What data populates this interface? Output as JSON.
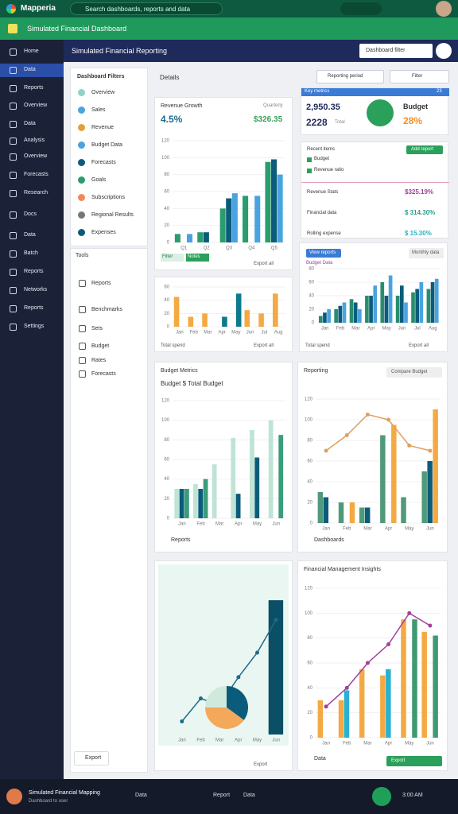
{
  "app": {
    "name": "Mapperia",
    "search": "Search dashboards, reports and data",
    "tab": "Simulated Financial Dashboard"
  },
  "header": {
    "title": "Simulated Financial Reporting",
    "filter": "Dashboard filter"
  },
  "sidebar": [
    "Home",
    "Data",
    "Reports",
    "Overview",
    "Data",
    "Analysis",
    "Overview",
    "Forecasts",
    "Research",
    "Docs",
    "Data",
    "Batch",
    "Reports",
    "Networks",
    "Reports",
    "Settings"
  ],
  "filters": {
    "title": "Dashboard Filters",
    "items": [
      "Overview",
      "Sales",
      "Revenue",
      "Budget Data",
      "Forecasts",
      "Goals",
      "Subscriptions",
      "Regional Results",
      "Expenses"
    ]
  },
  "tools": {
    "title": "Tools",
    "items": [
      "Reports",
      "Benchmarks",
      "Sets",
      "Budget",
      "Rates",
      "Forecasts"
    ],
    "footer": "Export"
  },
  "content": {
    "label": "Details",
    "period": "Reporting period",
    "filter": "Filter"
  },
  "kpi": {
    "title": "Key metrics",
    "count": "23",
    "value": "2,950.35",
    "sub": "2228",
    "subnote": "Total",
    "label": "Budget",
    "percent": "28%"
  },
  "list": {
    "title": "Recent items",
    "button": "Add report",
    "items": [
      "Budget",
      "Revenue ratio"
    ],
    "rows": [
      {
        "label": "Revenue Stats",
        "value": "$325.19%"
      },
      {
        "label": "Financial data",
        "value": "$ 314.30%"
      },
      {
        "label": "Rolling expense",
        "value": "$ 15.30%"
      }
    ]
  },
  "charts": [
    {
      "type": "bar",
      "title": "Revenue Growth",
      "tag": "Quarterly",
      "headline": "4.5%",
      "headline2": "$326.35",
      "badges": [
        "Filter",
        "Notes"
      ],
      "action": "Export all",
      "ylim": [
        0,
        120
      ],
      "yticks": [
        0,
        20,
        40,
        60,
        80,
        100,
        120
      ],
      "categories": [
        "Q1",
        "Q2",
        "Q3",
        "Q4",
        "Q5"
      ],
      "series": [
        {
          "color": "#2a9d6e",
          "values": [
            10,
            12,
            40,
            55,
            95
          ]
        },
        {
          "color": "#0b5c7a",
          "values": [
            null,
            12,
            52,
            null,
            98
          ]
        },
        {
          "color": "#4aa3df",
          "values": [
            10,
            null,
            58,
            55,
            80
          ]
        }
      ]
    },
    {
      "type": "bar",
      "label": "Total spend",
      "action": "Export all",
      "ylim": [
        0,
        60
      ],
      "yticks": [
        0,
        20,
        40,
        60
      ],
      "categories": [
        "Jan",
        "Feb",
        "Mar",
        "Apr",
        "May",
        "Jun",
        "Jul",
        "Aug"
      ],
      "series": [
        {
          "color": "#f4a942",
          "values": [
            45,
            15,
            20,
            null,
            null,
            25,
            20,
            50
          ]
        },
        {
          "color": "#0b7a8c",
          "values": [
            null,
            null,
            null,
            15,
            50,
            null,
            null,
            null
          ]
        }
      ]
    },
    {
      "type": "bar",
      "button": "View reports",
      "button2": "Monthly data",
      "subtitle": "Budget Data",
      "label": "Total spend",
      "action": "Export all",
      "ylim": [
        0,
        80
      ],
      "yticks": [
        0,
        20,
        40,
        60,
        80
      ],
      "categories": [
        "Jan",
        "Feb",
        "Mar",
        "Apr",
        "May",
        "Jun",
        "Jul",
        "Aug"
      ],
      "series": [
        {
          "color": "#2a8c6e",
          "values": [
            10,
            20,
            35,
            40,
            60,
            40,
            45,
            50
          ]
        },
        {
          "color": "#0b5c7a",
          "values": [
            15,
            25,
            30,
            40,
            40,
            55,
            50,
            60
          ]
        },
        {
          "color": "#4aa3df",
          "values": [
            20,
            30,
            20,
            55,
            70,
            30,
            60,
            65
          ]
        }
      ]
    },
    {
      "type": "bar",
      "title": "Budget Metrics",
      "subtitle": "Budget $ Total Budget",
      "footer": "Reports",
      "ylim": [
        0,
        120
      ],
      "yticks": [
        0,
        20,
        40,
        60,
        80,
        100,
        120
      ],
      "categories": [
        "Jan",
        "Feb",
        "Mar",
        "Apr",
        "May",
        "Jun"
      ],
      "series": [
        {
          "color": "#bfe3d4",
          "values": [
            30,
            35,
            55,
            82,
            90,
            100
          ]
        },
        {
          "color": "#0b5c7a",
          "values": [
            30,
            30,
            null,
            25,
            62,
            null
          ]
        },
        {
          "color": "#3a9d7a",
          "values": [
            30,
            40,
            null,
            null,
            null,
            85
          ]
        }
      ]
    },
    {
      "type": "bar",
      "title": "Reporting",
      "button": "Compare Budget",
      "footer": "Dashboards",
      "ylim": [
        0,
        120
      ],
      "yticks": [
        0,
        20,
        40,
        60,
        80,
        100,
        120
      ],
      "categories": [
        "Jan",
        "Feb",
        "Mar",
        "Apr",
        "May",
        "Jun"
      ],
      "series": [
        {
          "color": "#4f9a7a",
          "values": [
            30,
            20,
            15,
            85,
            25,
            50
          ]
        },
        {
          "color": "#0b5c7a",
          "values": [
            25,
            null,
            15,
            null,
            null,
            60
          ]
        },
        {
          "color": "#f4a942",
          "values": [
            null,
            20,
            null,
            95,
            null,
            110
          ]
        },
        {
          "type": "line",
          "color": "#e0a060",
          "values": [
            70,
            85,
            105,
            100,
            75,
            70
          ]
        }
      ]
    },
    {
      "type": "bar",
      "action": "Export",
      "ylim": [
        0,
        100
      ],
      "categories": [
        "Jan",
        "Feb",
        "Mar",
        "Apr",
        "May",
        "Jun"
      ],
      "series": [
        {
          "color": "#0b4f66",
          "values": [
            null,
            null,
            null,
            null,
            null,
            82
          ]
        },
        {
          "type": "line",
          "color": "#1b6b88",
          "values": [
            8,
            22,
            18,
            35,
            50,
            70
          ]
        }
      ],
      "pie": {
        "values": [
          35,
          40,
          25
        ],
        "colors": [
          "#0b5c7a",
          "#f4a85a",
          "#cfeadd"
        ]
      }
    },
    {
      "type": "bar",
      "title": "Financial Management Insights",
      "footer": "Data",
      "button": "Export",
      "ylim": [
        0,
        120
      ],
      "yticks": [
        0,
        20,
        40,
        60,
        80,
        100,
        120
      ],
      "categories": [
        "Jan",
        "Feb",
        "Mar",
        "Apr",
        "May",
        "Jun"
      ],
      "series": [
        {
          "color": "#f4a942",
          "values": [
            30,
            30,
            55,
            50,
            95,
            85
          ]
        },
        {
          "color": "#2ab0d0",
          "values": [
            null,
            38,
            null,
            55,
            null,
            null
          ]
        },
        {
          "color": "#3f9a72",
          "values": [
            null,
            null,
            null,
            null,
            95,
            82
          ]
        },
        {
          "type": "line",
          "color": "#a0409a",
          "values": [
            25,
            40,
            60,
            75,
            100,
            90
          ]
        }
      ]
    }
  ],
  "footer": {
    "user": "Simulated Financial Mapping",
    "note": "Dashboard to user",
    "status": "Data",
    "status2": "Report",
    "status3": "Data",
    "clock": "3:00 AM"
  }
}
